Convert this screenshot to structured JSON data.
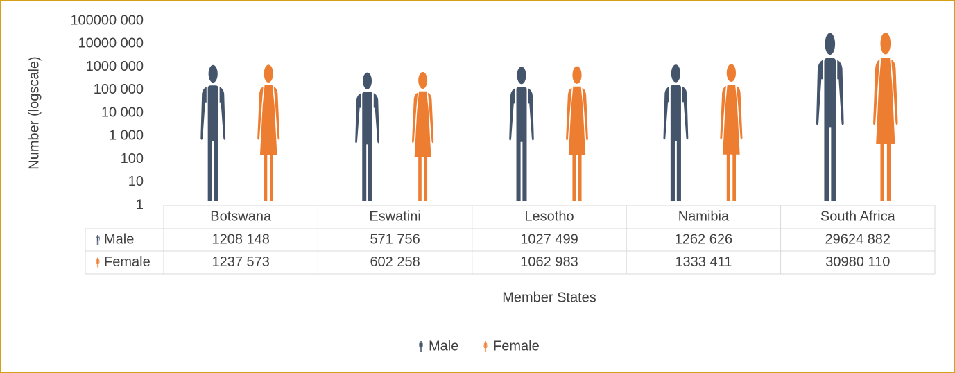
{
  "chart_data": {
    "type": "bar",
    "yscale": "log",
    "y_axis_label": "Number (logscale)",
    "x_axis_label": "Member States",
    "categories": [
      "Botswana",
      "Eswatini",
      "Lesotho",
      "Namibia",
      "South Africa"
    ],
    "series": [
      {
        "name": "Male",
        "color": "#44546a",
        "values": [
          1208148,
          571756,
          1027499,
          1262626,
          29624882
        ],
        "value_labels": [
          "1208 148",
          "571 756",
          "1027 499",
          "1262 626",
          "29624 882"
        ]
      },
      {
        "name": "Female",
        "color": "#ed7d31",
        "values": [
          1237573,
          602258,
          1062983,
          1333411,
          30980110
        ],
        "value_labels": [
          "1237 573",
          "602 258",
          "1062 983",
          "1333 411",
          "30980 110"
        ]
      }
    ],
    "ylim": [
      1,
      100000000
    ],
    "yticks": [
      {
        "value": 100000000,
        "label": "100000 000"
      },
      {
        "value": 10000000,
        "label": "10000 000"
      },
      {
        "value": 1000000,
        "label": "1000 000"
      },
      {
        "value": 100000,
        "label": "100 000"
      },
      {
        "value": 10000,
        "label": "10 000"
      },
      {
        "value": 1000,
        "label": "1 000"
      },
      100,
      10,
      1
    ],
    "legend": "bottom",
    "data_table": true
  }
}
